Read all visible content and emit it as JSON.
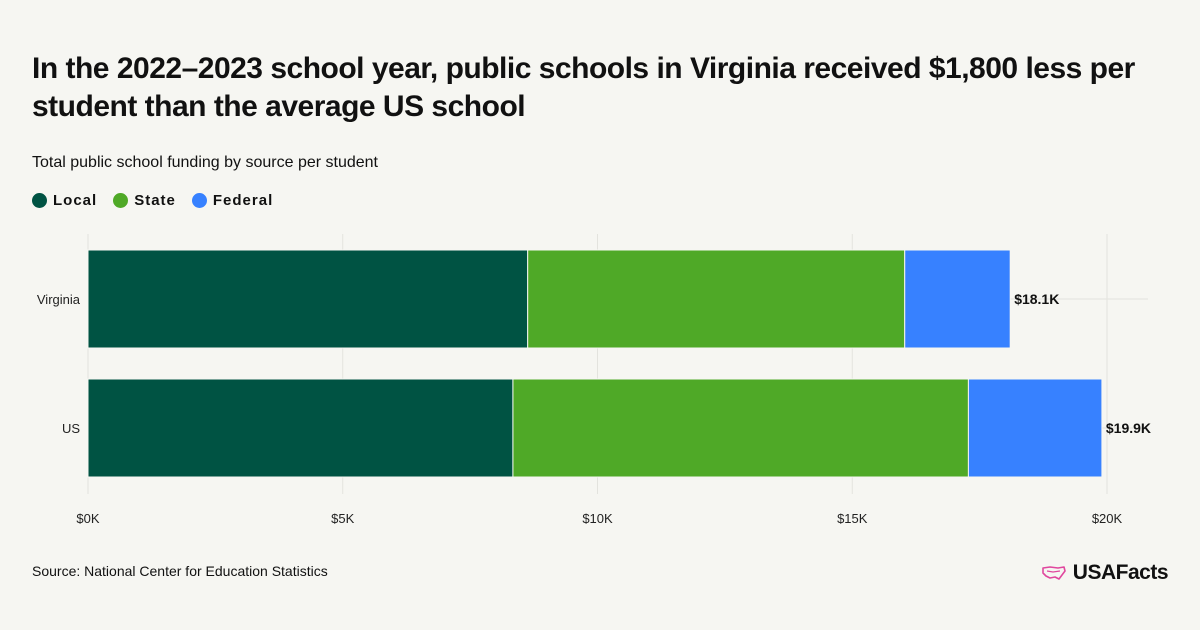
{
  "title": "In the 2022–2023 school year, public schools in Virginia received $1,800 less per student than the average US school",
  "subtitle": "Total public school funding by source per student",
  "source": "Source: National Center for Education Statistics",
  "brand": "USAFacts",
  "brand_color": "#e0479e",
  "colors": {
    "Local": "#005343",
    "State": "#4fa927",
    "Federal": "#3781ff"
  },
  "chart_data": {
    "type": "bar",
    "orientation": "horizontal",
    "stacked": true,
    "categories": [
      "Virginia",
      "US"
    ],
    "series": [
      {
        "name": "Local",
        "values": [
          8630,
          8340
        ]
      },
      {
        "name": "State",
        "values": [
          7400,
          8940
        ]
      },
      {
        "name": "Federal",
        "values": [
          2070,
          2620
        ]
      }
    ],
    "totals": [
      18100,
      19900
    ],
    "total_labels": [
      "$18.1K",
      "$19.9K"
    ],
    "xlim": [
      0,
      20000
    ],
    "xticks": [
      0,
      5000,
      10000,
      15000,
      20000
    ],
    "xtick_labels": [
      "$0K",
      "$5K",
      "$10K",
      "$15K",
      "$20K"
    ],
    "grid": true,
    "legend_position": "top-left"
  }
}
